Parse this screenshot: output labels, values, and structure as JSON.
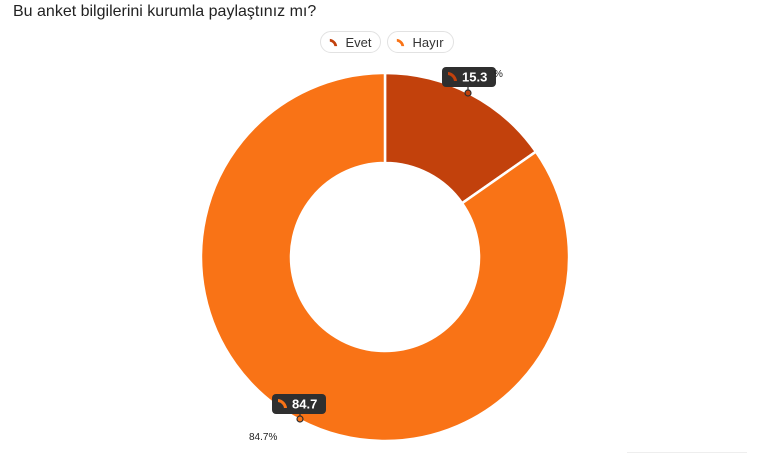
{
  "title": "Bu anket bilgilerini kurumla paylaştınız mı?",
  "legend": [
    {
      "label": "Evet",
      "color": "#c2410c",
      "icon": "slice-icon"
    },
    {
      "label": "Hayır",
      "color": "#f97316",
      "icon": "slice-icon"
    }
  ],
  "chart_data": {
    "type": "pie",
    "donut": true,
    "title": "Bu anket bilgilerini kurumla paylaştınız mı?",
    "legend_position": "top-center",
    "slices": [
      {
        "label": "Evet",
        "value": 15.3,
        "color": "#c2410c",
        "tooltip": "15.3",
        "percent_label": "%"
      },
      {
        "label": "Hayır",
        "value": 84.7,
        "color": "#f97316",
        "tooltip": "84.7",
        "percent_label": "84.7%"
      }
    ]
  }
}
